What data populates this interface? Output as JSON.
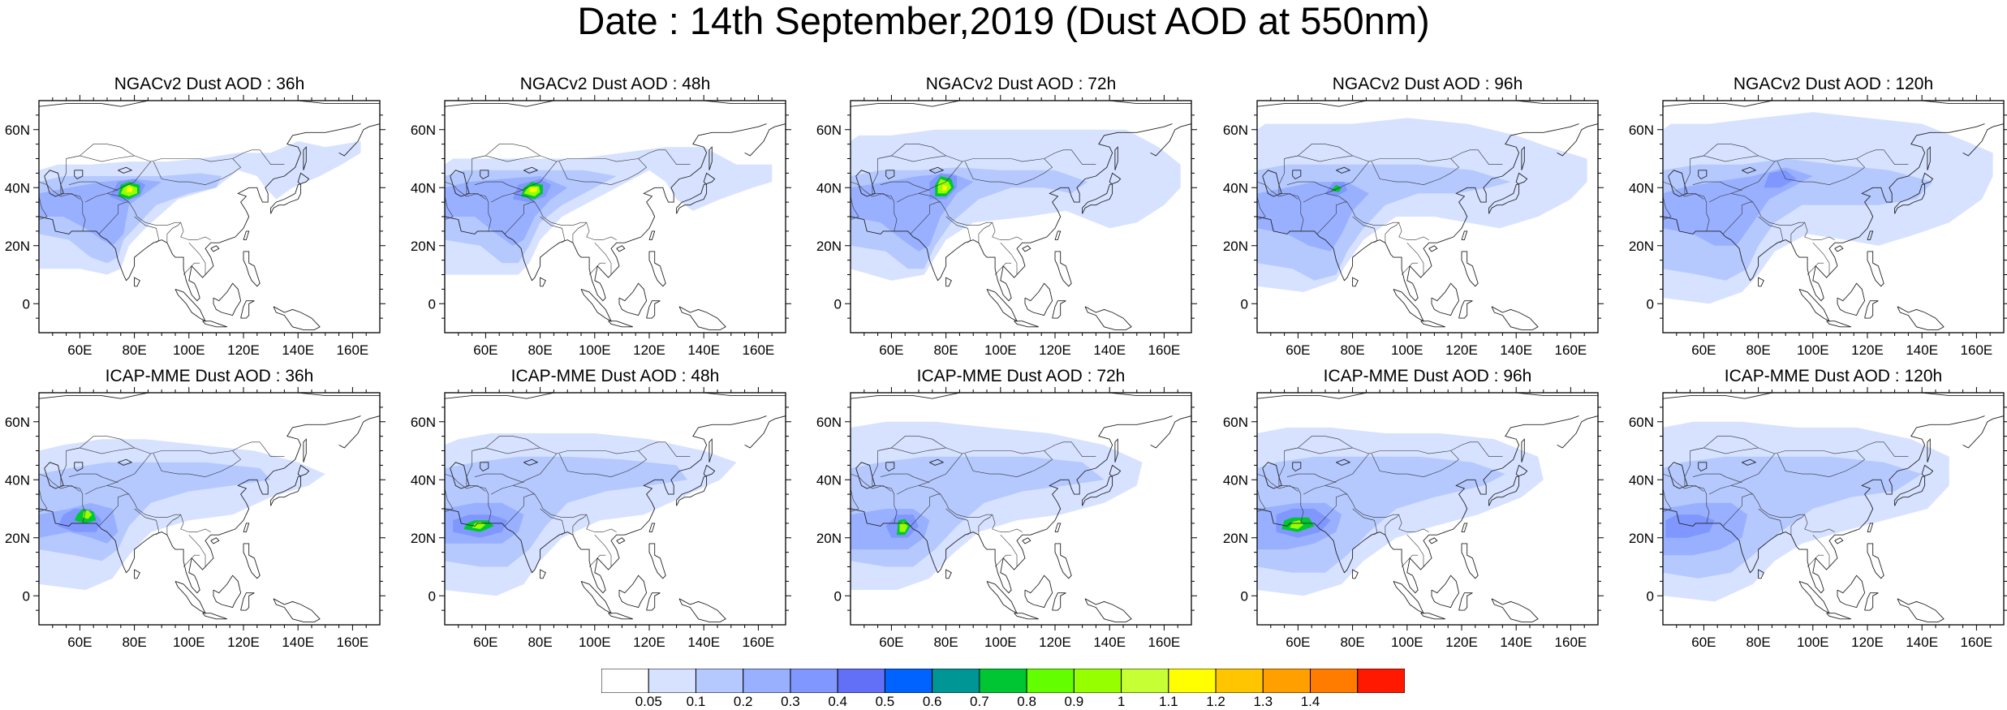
{
  "title": "Date : 14th September,2019 (Dust AOD at 550nm)",
  "map_region": {
    "lon_range": [
      45,
      170
    ],
    "lat_range": [
      -10,
      70
    ]
  },
  "axes": {
    "lon_ticks": [
      {
        "value": 60,
        "label": "60E"
      },
      {
        "value": 80,
        "label": "80E"
      },
      {
        "value": 100,
        "label": "100E"
      },
      {
        "value": 120,
        "label": "120E"
      },
      {
        "value": 140,
        "label": "140E"
      },
      {
        "value": 160,
        "label": "160E"
      }
    ],
    "lat_ticks": [
      {
        "value": 60,
        "label": "60N"
      },
      {
        "value": 40,
        "label": "40N"
      },
      {
        "value": 20,
        "label": "20N"
      },
      {
        "value": 0,
        "label": "0"
      }
    ]
  },
  "panels": [
    {
      "title": "NGACv2 Dust AOD : 36h",
      "model": "NGACv2",
      "lead": "36h"
    },
    {
      "title": "NGACv2 Dust AOD : 48h",
      "model": "NGACv2",
      "lead": "48h"
    },
    {
      "title": "NGACv2 Dust AOD : 72h",
      "model": "NGACv2",
      "lead": "72h"
    },
    {
      "title": "NGACv2 Dust AOD : 96h",
      "model": "NGACv2",
      "lead": "96h"
    },
    {
      "title": "NGACv2 Dust AOD : 120h",
      "model": "NGACv2",
      "lead": "120h"
    },
    {
      "title": "ICAP-MME Dust AOD : 36h",
      "model": "ICAP-MME",
      "lead": "36h"
    },
    {
      "title": "ICAP-MME Dust AOD : 48h",
      "model": "ICAP-MME",
      "lead": "48h"
    },
    {
      "title": "ICAP-MME Dust AOD : 72h",
      "model": "ICAP-MME",
      "lead": "72h"
    },
    {
      "title": "ICAP-MME Dust AOD : 96h",
      "model": "ICAP-MME",
      "lead": "96h"
    },
    {
      "title": "ICAP-MME Dust AOD : 120h",
      "model": "ICAP-MME",
      "lead": "120h"
    }
  ],
  "colorbar": {
    "colors": [
      "#ffffff",
      "#d6e2ff",
      "#b5c9ff",
      "#98b0ff",
      "#7f97ff",
      "#6270f8",
      "#0063ff",
      "#009696",
      "#00c633",
      "#63ff00",
      "#96ff00",
      "#c6ff33",
      "#ffff00",
      "#ffc600",
      "#ffa000",
      "#ff7c00",
      "#ff1900"
    ],
    "labels": [
      "0.05",
      "0.1",
      "0.2",
      "0.3",
      "0.4",
      "0.5",
      "0.6",
      "0.7",
      "0.8",
      "0.9",
      "1",
      "1.1",
      "1.2",
      "1.3",
      "1.4"
    ]
  },
  "dust_levels": {
    "low": "#d6e2ff",
    "mid": "#b5c9ff",
    "high": "#98b0ff",
    "peak": "#7f97ff",
    "hot": "#96ff00",
    "core": "#ffff00",
    "rim": "#00c633"
  }
}
